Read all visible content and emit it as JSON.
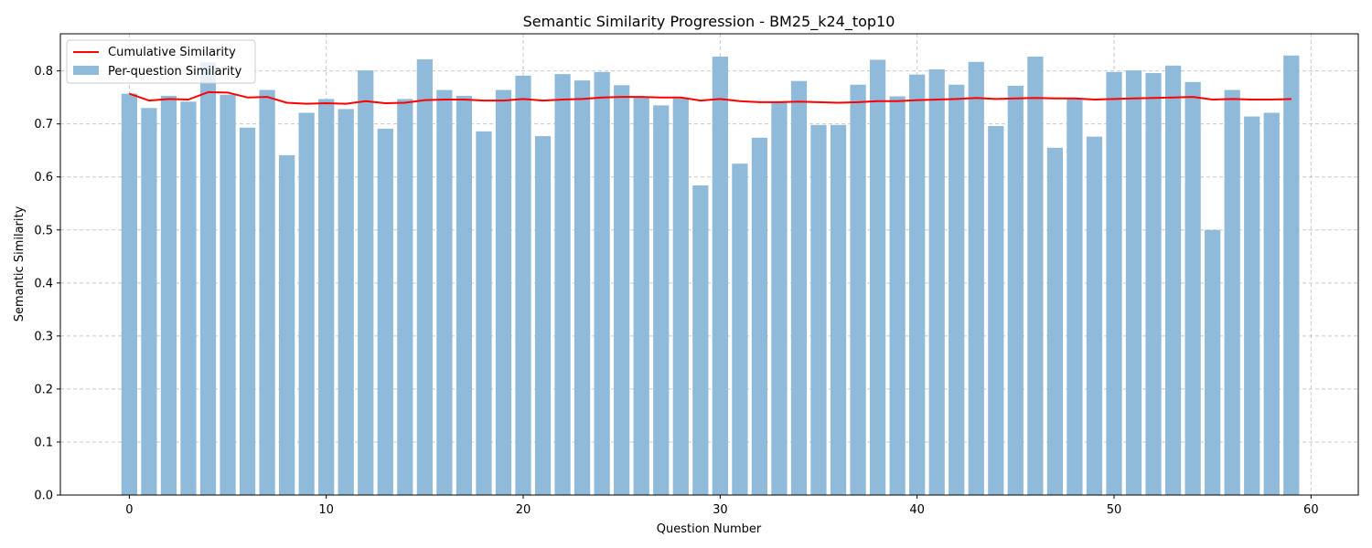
{
  "chart_data": {
    "type": "bar",
    "title": "Semantic Similarity Progression - BM25_k24_top10",
    "xlabel": "Question Number",
    "ylabel": "Semantic Similarity",
    "xlim": [
      -3.5,
      62.4
    ],
    "ylim": [
      0,
      0.87
    ],
    "xticks": [
      0,
      10,
      20,
      30,
      40,
      50,
      60
    ],
    "yticks": [
      0.0,
      0.1,
      0.2,
      0.3,
      0.4,
      0.5,
      0.6,
      0.7,
      0.8
    ],
    "grid": true,
    "legend_position": "upper left",
    "x": [
      0,
      1,
      2,
      3,
      4,
      5,
      6,
      7,
      8,
      9,
      10,
      11,
      12,
      13,
      14,
      15,
      16,
      17,
      18,
      19,
      20,
      21,
      22,
      23,
      24,
      25,
      26,
      27,
      28,
      29,
      30,
      31,
      32,
      33,
      34,
      35,
      36,
      37,
      38,
      39,
      40,
      41,
      42,
      43,
      44,
      45,
      46,
      47,
      48,
      49,
      50,
      51,
      52,
      53,
      54,
      55,
      56,
      57,
      58,
      59
    ],
    "series": [
      {
        "name": "Cumulative Similarity",
        "kind": "line",
        "color": "#ff0000",
        "values": [
          0.757,
          0.744,
          0.747,
          0.746,
          0.76,
          0.759,
          0.75,
          0.751,
          0.74,
          0.738,
          0.739,
          0.738,
          0.743,
          0.739,
          0.74,
          0.745,
          0.746,
          0.746,
          0.744,
          0.744,
          0.747,
          0.744,
          0.746,
          0.747,
          0.75,
          0.751,
          0.751,
          0.75,
          0.75,
          0.744,
          0.747,
          0.743,
          0.741,
          0.741,
          0.742,
          0.741,
          0.74,
          0.741,
          0.743,
          0.743,
          0.745,
          0.746,
          0.747,
          0.749,
          0.747,
          0.748,
          0.749,
          0.748,
          0.748,
          0.746,
          0.747,
          0.748,
          0.749,
          0.75,
          0.751,
          0.746,
          0.747,
          0.746,
          0.746,
          0.747
        ]
      },
      {
        "name": "Per-question Similarity",
        "kind": "bar",
        "color": "#8fbad9",
        "values": [
          0.757,
          0.73,
          0.753,
          0.742,
          0.816,
          0.755,
          0.693,
          0.764,
          0.641,
          0.721,
          0.747,
          0.728,
          0.801,
          0.691,
          0.747,
          0.822,
          0.764,
          0.753,
          0.686,
          0.764,
          0.791,
          0.677,
          0.794,
          0.782,
          0.798,
          0.773,
          0.752,
          0.735,
          0.748,
          0.584,
          0.827,
          0.625,
          0.674,
          0.74,
          0.781,
          0.698,
          0.698,
          0.774,
          0.821,
          0.752,
          0.793,
          0.803,
          0.774,
          0.817,
          0.696,
          0.772,
          0.827,
          0.655,
          0.748,
          0.676,
          0.798,
          0.801,
          0.796,
          0.81,
          0.779,
          0.5,
          0.764,
          0.714,
          0.721,
          0.829
        ]
      }
    ]
  }
}
